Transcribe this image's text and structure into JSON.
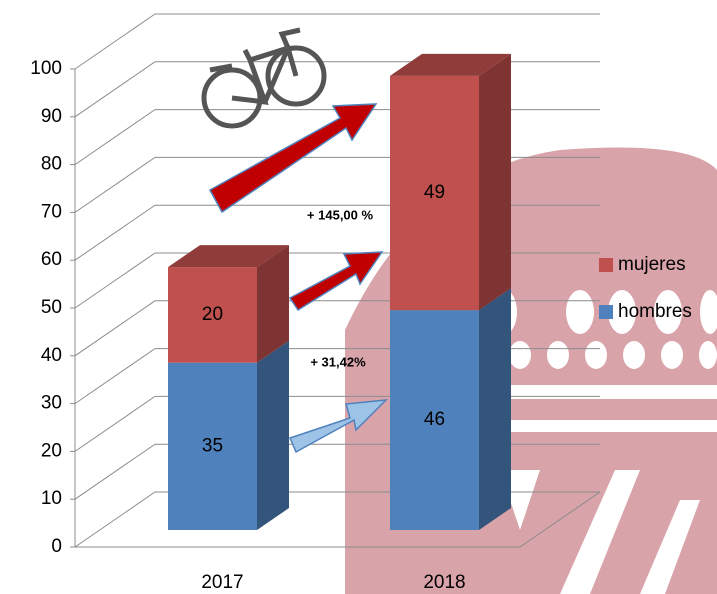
{
  "chart_data": {
    "type": "bar",
    "stacked": true,
    "categories": [
      "2017",
      "2018"
    ],
    "series": [
      {
        "name": "hombres",
        "color": "#4f81bd",
        "values": [
          35,
          46
        ]
      },
      {
        "name": "mujeres",
        "color": "#c0504d",
        "values": [
          20,
          49
        ]
      }
    ],
    "ylim": [
      0,
      100
    ],
    "yticks": [
      0,
      10,
      20,
      30,
      40,
      50,
      60,
      70,
      80,
      90,
      100
    ],
    "grid": true,
    "legend": "right",
    "annotations": [
      "+ 145,00 %",
      "+ 31,42%"
    ]
  }
}
